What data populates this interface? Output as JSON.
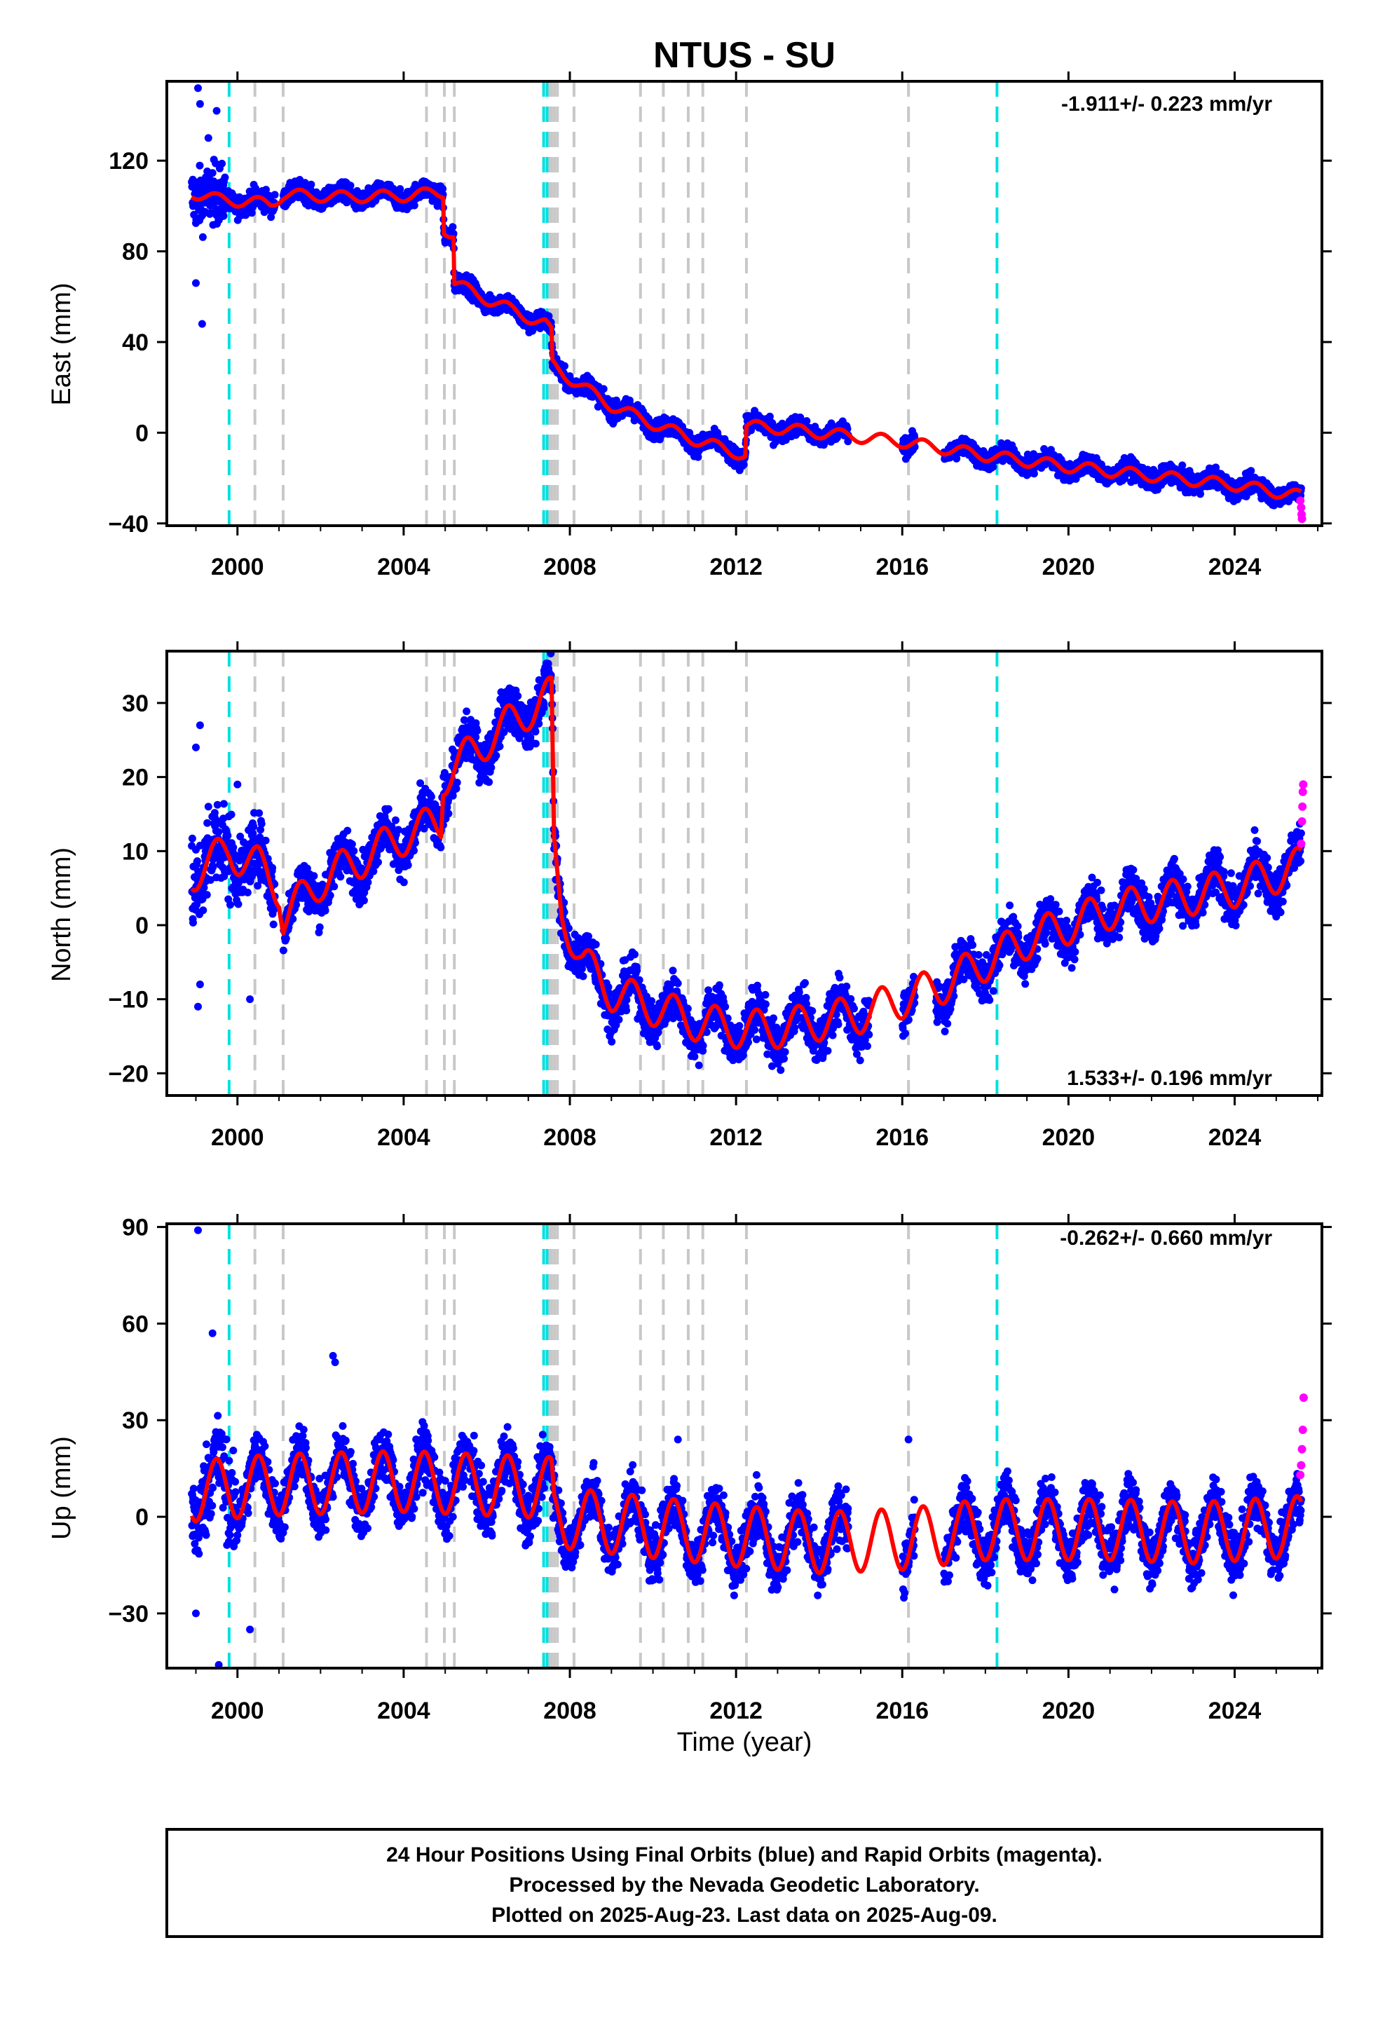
{
  "chart_data": {
    "type": "scatter",
    "title": "NTUS - SU",
    "xlabel": "Time (year)",
    "xlim": [
      1998.3,
      2026.1
    ],
    "xticks": [
      2000,
      2004,
      2008,
      2012,
      2016,
      2020,
      2024
    ],
    "xtick_labels": [
      "2000",
      "2004",
      "2008",
      "2012",
      "2016",
      "2020",
      "2024"
    ],
    "colors": {
      "final_orbits": "#0000ff",
      "rapid_orbits": "#ff00ff",
      "model": "#ff0000",
      "antenna_change": "#00e0e0",
      "earthquake": "#c8c8c8"
    },
    "cyan_lines": [
      1999.8,
      2007.37,
      2007.45,
      2018.28
    ],
    "gray_lines": [
      2000.42,
      2001.1,
      2004.55,
      2004.98,
      2005.22,
      2007.5,
      2007.56,
      2007.63,
      2007.7,
      2008.1,
      2009.7,
      2010.25,
      2010.85,
      2011.2,
      2012.25,
      2016.15
    ],
    "panels": [
      {
        "ylabel": "East (mm)",
        "ylim": [
          -41,
          155
        ],
        "yticks": [
          -40,
          0,
          40,
          80,
          120
        ],
        "ytick_labels": [
          "−40",
          "0",
          "40",
          "80",
          "120"
        ],
        "rate": "-1.911+/- 0.223 mm/yr",
        "rate_position": "top-right",
        "model": {
          "trend": [
            [
              1998.9,
              106
            ],
            [
              1999.5,
              103
            ],
            [
              2000.8,
              101
            ],
            [
              2001.1,
              105
            ],
            [
              2002.5,
              104
            ],
            [
              2004.0,
              104.5
            ],
            [
              2004.95,
              106
            ],
            [
              2004.97,
              90
            ],
            [
              2005.2,
              87
            ],
            [
              2005.22,
              66
            ],
            [
              2006.0,
              59
            ],
            [
              2007.0,
              51
            ],
            [
              2007.4,
              48
            ],
            [
              2007.56,
              44
            ],
            [
              2007.58,
              30
            ],
            [
              2008.0,
              24
            ],
            [
              2009.0,
              12
            ],
            [
              2010.0,
              4
            ],
            [
              2011.0,
              -3
            ],
            [
              2012.22,
              -10
            ],
            [
              2012.25,
              3
            ],
            [
              2013.0,
              2
            ],
            [
              2016.0,
              -4
            ],
            [
              2018.0,
              -10
            ],
            [
              2020.0,
              -15
            ],
            [
              2022.0,
              -19
            ],
            [
              2024.0,
              -23
            ],
            [
              2025.6,
              -28
            ]
          ],
          "annual_amplitude": 2.5
        },
        "scatter": {
          "segments": [
            {
              "from": 1998.9,
              "to": 1999.7,
              "spread": 11
            },
            {
              "from": 1999.7,
              "to": 2000.9,
              "spread": 4
            },
            {
              "from": 2001.1,
              "to": 2025.6,
              "spread": 3.5
            }
          ],
          "gaps": [
            [
              2000.9,
              2001.1
            ],
            [
              2014.7,
              2016.0
            ],
            [
              2016.3,
              2017.0
            ]
          ],
          "outliers": [
            [
              1999.05,
              152
            ],
            [
              1999.1,
              145
            ],
            [
              1999.0,
              66
            ],
            [
              1999.15,
              48
            ],
            [
              1999.3,
              130
            ],
            [
              1999.5,
              142
            ]
          ]
        },
        "rapid_points": [
          [
            2025.58,
            -30
          ],
          [
            2025.6,
            -33
          ],
          [
            2025.61,
            -36
          ],
          [
            2025.62,
            -38
          ]
        ]
      },
      {
        "ylabel": "North (mm)",
        "ylim": [
          -23,
          37
        ],
        "yticks": [
          -20,
          -10,
          0,
          10,
          20,
          30
        ],
        "ytick_labels": [
          "−20",
          "−10",
          "0",
          "10",
          "20",
          "30"
        ],
        "rate": "1.533+/- 0.196 mm/yr",
        "rate_position": "bottom-right",
        "model": {
          "trend": [
            [
              1998.9,
              7
            ],
            [
              1999.8,
              10
            ],
            [
              2000.5,
              8
            ],
            [
              2001.0,
              5
            ],
            [
              2001.1,
              1
            ],
            [
              2002.0,
              6
            ],
            [
              2003.0,
              9
            ],
            [
              2004.0,
              12
            ],
            [
              2004.9,
              14
            ],
            [
              2004.95,
              20
            ],
            [
              2006.0,
              25
            ],
            [
              2007.0,
              29
            ],
            [
              2007.56,
              31
            ],
            [
              2007.62,
              10
            ],
            [
              2007.8,
              2
            ],
            [
              2008.3,
              -5
            ],
            [
              2009.0,
              -9
            ],
            [
              2010.0,
              -11
            ],
            [
              2011.0,
              -13
            ],
            [
              2012.0,
              -14
            ],
            [
              2013.0,
              -14
            ],
            [
              2014.0,
              -13
            ],
            [
              2015.0,
              -12
            ],
            [
              2016.0,
              -10
            ],
            [
              2017.0,
              -8
            ],
            [
              2018.0,
              -5
            ],
            [
              2019.0,
              -2
            ],
            [
              2020.0,
              0
            ],
            [
              2021.0,
              2
            ],
            [
              2022.0,
              3
            ],
            [
              2023.0,
              4
            ],
            [
              2024.0,
              5
            ],
            [
              2025.6,
              8
            ]
          ],
          "annual_amplitude": 2.6
        },
        "scatter": {
          "segments": [
            {
              "from": 1998.9,
              "to": 1999.9,
              "spread": 5
            },
            {
              "from": 1999.9,
              "to": 2000.9,
              "spread": 3.5
            },
            {
              "from": 2001.1,
              "to": 2025.6,
              "spread": 2.6
            }
          ],
          "gaps": [
            [
              2000.9,
              2001.1
            ],
            [
              2015.2,
              2016.0
            ],
            [
              2016.3,
              2016.8
            ]
          ],
          "outliers": [
            [
              1999.0,
              24
            ],
            [
              1999.05,
              -11
            ],
            [
              1999.1,
              27
            ],
            [
              1999.3,
              16
            ],
            [
              2000.0,
              19
            ],
            [
              2000.3,
              -10
            ],
            [
              1999.1,
              -8
            ]
          ]
        },
        "rapid_points": [
          [
            2025.6,
            11
          ],
          [
            2025.62,
            14
          ],
          [
            2025.63,
            16
          ],
          [
            2025.64,
            18
          ],
          [
            2025.65,
            19
          ]
        ]
      },
      {
        "ylabel": "Up (mm)",
        "ylim": [
          -47,
          91
        ],
        "yticks": [
          -30,
          0,
          30,
          60,
          90
        ],
        "ytick_labels": [
          "−30",
          "0",
          "30",
          "60",
          "90"
        ],
        "rate": "-0.262+/- 0.660 mm/yr",
        "rate_position": "top-right",
        "model": {
          "trend": [
            [
              1998.9,
              8
            ],
            [
              2001.0,
              10
            ],
            [
              2004.0,
              11
            ],
            [
              2007.56,
              9
            ],
            [
              2007.62,
              0
            ],
            [
              2009.0,
              -2
            ],
            [
              2012.0,
              -6
            ],
            [
              2014.0,
              -8
            ],
            [
              2016.0,
              -7
            ],
            [
              2018.0,
              -4
            ],
            [
              2021.0,
              -4
            ],
            [
              2023.0,
              -5
            ],
            [
              2025.6,
              -3
            ]
          ],
          "annual_amplitude": 9.5
        },
        "scatter": {
          "segments": [
            {
              "from": 1998.9,
              "to": 2000.0,
              "spread": 12
            },
            {
              "from": 2000.0,
              "to": 2025.6,
              "spread": 7
            }
          ],
          "gaps": [
            [
              2014.7,
              2016.0
            ],
            [
              2016.3,
              2017.0
            ]
          ],
          "outliers": [
            [
              1999.05,
              89
            ],
            [
              1999.0,
              -30
            ],
            [
              1999.55,
              -46
            ],
            [
              1999.4,
              57
            ],
            [
              2000.3,
              -35
            ],
            [
              2002.3,
              50
            ],
            [
              2002.35,
              48
            ],
            [
              2010.6,
              24
            ],
            [
              2016.15,
              24
            ]
          ]
        },
        "rapid_points": [
          [
            2025.58,
            13
          ],
          [
            2025.6,
            16
          ],
          [
            2025.62,
            21
          ],
          [
            2025.64,
            27
          ],
          [
            2025.66,
            37
          ]
        ]
      }
    ],
    "footer": {
      "line1": "24 Hour Positions Using Final Orbits (blue) and Rapid Orbits (magenta).",
      "line2": "Processed by the Nevada Geodetic Laboratory.",
      "line3": "Plotted on 2025-Aug-23. Last data on 2025-Aug-09."
    }
  }
}
